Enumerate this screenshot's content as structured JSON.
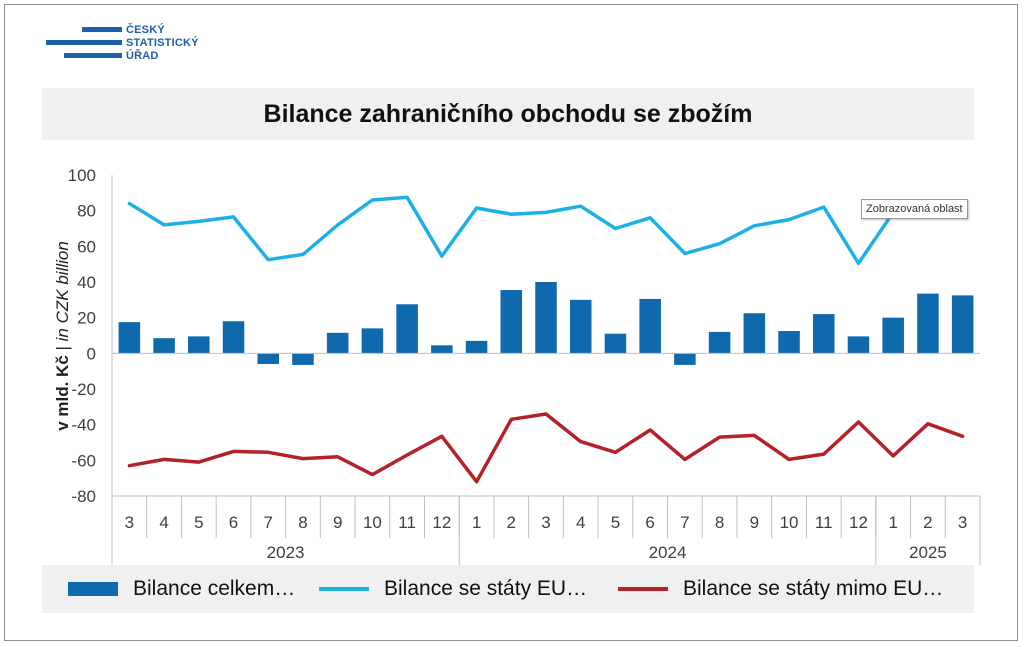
{
  "logo": {
    "lines": [
      "ČESKÝ",
      "STATISTICKÝ",
      "ÚŘAD"
    ],
    "color": "#1f5fa8"
  },
  "tooltip": "Zobrazovaná oblast",
  "chart_data": {
    "type": "bar",
    "title": "Bilance zahraničního obchodu se zbožím",
    "ylabel_main": "v mld. Kč",
    "ylabel_sep": "|",
    "ylabel_alt": "in CZK billion",
    "ylim": [
      -80,
      100
    ],
    "yticks": [
      100,
      80,
      60,
      40,
      20,
      0,
      -20,
      -40,
      -60,
      -80
    ],
    "grid": false,
    "legend_position": "bottom",
    "categories": [
      "3",
      "4",
      "5",
      "6",
      "7",
      "8",
      "9",
      "10",
      "11",
      "12",
      "1",
      "2",
      "3",
      "4",
      "5",
      "6",
      "7",
      "8",
      "9",
      "10",
      "11",
      "12",
      "1",
      "2",
      "3"
    ],
    "year_groups": [
      {
        "label": "2023",
        "start": 0,
        "end": 9
      },
      {
        "label": "2024",
        "start": 10,
        "end": 21
      },
      {
        "label": "2025",
        "start": 22,
        "end": 24
      }
    ],
    "series": [
      {
        "name": "Bilance celkem…",
        "kind": "bar",
        "color": "#0e6aad",
        "values": [
          17.5,
          8.5,
          9.5,
          18,
          -6,
          -6.5,
          11.5,
          14,
          27.5,
          4.5,
          7,
          35.5,
          40,
          30,
          11,
          30.5,
          -6.5,
          12,
          22.5,
          12.5,
          22,
          9.5,
          20,
          33.5,
          32.5
        ]
      },
      {
        "name": "Bilance se státy EU…",
        "kind": "line",
        "color": "#1cb1e6",
        "values": [
          84,
          72,
          74,
          76.5,
          52.5,
          55.5,
          72,
          86,
          87.5,
          54.5,
          81.5,
          78,
          79,
          82.5,
          70,
          76,
          56,
          61.5,
          71.5,
          75,
          82,
          50.5,
          79,
          null,
          null
        ]
      },
      {
        "name": "Bilance se státy mimo EU…",
        "kind": "line",
        "color": "#b52128",
        "values": [
          -63,
          -59.5,
          -61,
          -55,
          -55.5,
          -59,
          -58,
          -68,
          -57,
          -46.5,
          -72,
          -37,
          -34,
          -49.5,
          -55.5,
          -43,
          -59.5,
          -47,
          -46,
          -59.5,
          -56.5,
          -38.5,
          -57.5,
          -39.5,
          -46.5
        ]
      }
    ]
  }
}
